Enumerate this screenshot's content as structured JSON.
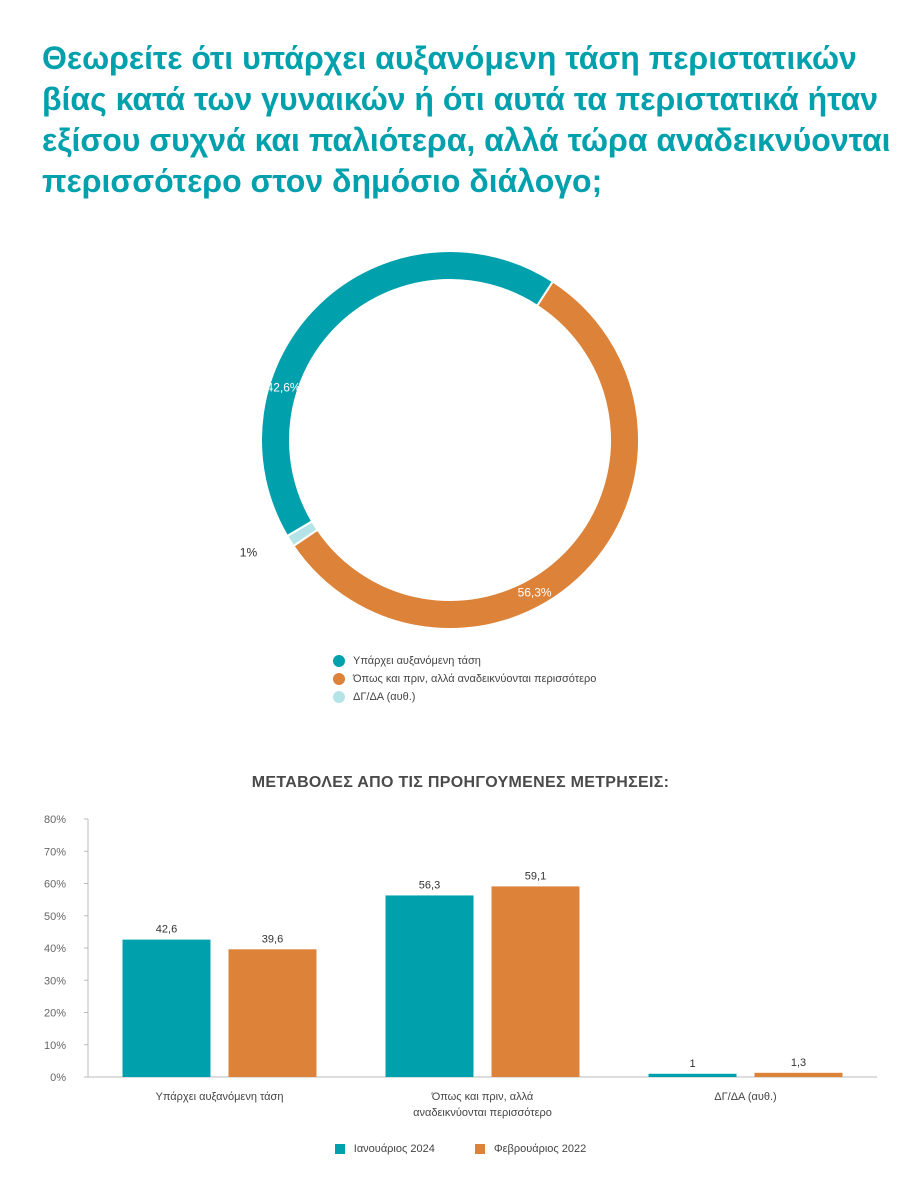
{
  "page": {
    "title": "Θεωρείτε ότι υπάρχει αυξανόμενη τάση περιστατικών βίας κατά των γυναικών ή ότι αυτά τα περιστατικά ήταν εξίσου συχνά και παλιότερα, αλλά τώρα αναδεικνύονται περισσότερο στον δημόσιο διάλογο;"
  },
  "colors": {
    "teal": "#00a0ad",
    "orange": "#dd8239",
    "light": "#b5e4e8",
    "title": "#00a0ad"
  },
  "chart_data": [
    {
      "type": "pie",
      "title": "",
      "slices": [
        {
          "label": "Υπάρχει αυξανόμενη τάση",
          "value": 42.6,
          "display": "42,6%",
          "color": "#00a0ad"
        },
        {
          "label": "Όπως και πριν, αλλά αναδεικνύονται περισσότερο",
          "value": 56.3,
          "display": "56,3%",
          "color": "#dd8239"
        },
        {
          "label": "ΔΓ/ΔΑ (αυθ.)",
          "value": 1,
          "display": "1%",
          "color": "#b5e4e8"
        }
      ],
      "legend_position": "bottom"
    },
    {
      "type": "bar",
      "title": "ΜΕΤΑΒΟΛΕΣ ΑΠΟ ΤΙΣ ΠΡΟΗΓΟΥΜΕΝΕΣ ΜΕΤΡΗΣΕΙΣ:",
      "categories": [
        [
          "Υπάρχει αυξανόμενη τάση"
        ],
        [
          "Όπως και πριν, αλλά",
          "αναδεικνύονται περισσότερο"
        ],
        [
          "ΔΓ/ΔΑ (αυθ.)"
        ]
      ],
      "series": [
        {
          "name": "Ιανουάριος 2024",
          "color": "#00a0ad",
          "values": [
            42.6,
            56.3,
            1
          ],
          "labels": [
            "42,6",
            "56,3",
            "1"
          ]
        },
        {
          "name": "Φεβρουάριος 2022",
          "color": "#dd8239",
          "values": [
            39.6,
            59.1,
            1.3
          ],
          "labels": [
            "39,6",
            "59,1",
            "1,3"
          ]
        }
      ],
      "ylim": [
        0,
        80
      ],
      "yticks": [
        "0%",
        "10%",
        "20%",
        "30%",
        "40%",
        "50%",
        "60%",
        "70%",
        "80%"
      ],
      "xlabel": "",
      "ylabel": "",
      "grid": false,
      "legend_position": "bottom"
    }
  ]
}
